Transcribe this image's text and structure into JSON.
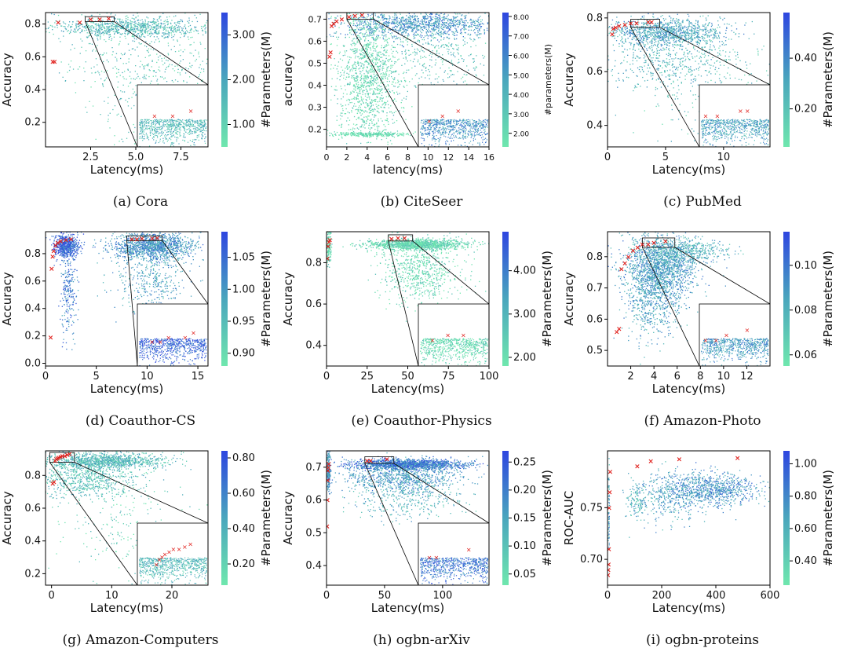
{
  "colors": {
    "cmap_low": "#6fe7ae",
    "cmap_mid": "#4aa6bd",
    "cmap_high": "#2e46e0",
    "pareto": "#e0201c",
    "axis": "#000000"
  },
  "chart_data": [
    {
      "type": "scatter",
      "caption": "(a) Cora",
      "xlabel": "Latency(ms)",
      "ylabel": "Accuracy",
      "colorbar_label": "#Parameters(M)",
      "xlim": [
        0,
        9
      ],
      "ylim": [
        0.05,
        0.87
      ],
      "xticks": [
        2.5,
        5.0,
        7.5
      ],
      "xtick_labels": [
        "2.5",
        "5.0",
        "7.5"
      ],
      "yticks": [
        0.2,
        0.4,
        0.6,
        0.8
      ],
      "ytick_labels": [
        "0.2",
        "0.4",
        "0.6",
        "0.8"
      ],
      "cbar_range": [
        0.5,
        3.5
      ],
      "cbar_ticks": [
        1.0,
        2.0,
        3.0
      ],
      "cbar_tick_labels": [
        "1.00",
        "2.00",
        "3.00"
      ],
      "pareto": {
        "x": [
          0.4,
          0.5,
          0.7,
          1.9,
          2.5,
          3.0,
          3.5
        ],
        "y": [
          0.57,
          0.57,
          0.81,
          0.81,
          0.83,
          0.83,
          0.835
        ]
      },
      "zoom_box": {
        "x": [
          2.2,
          3.8
        ],
        "y": [
          0.815,
          0.845
        ]
      }
    },
    {
      "type": "scatter",
      "caption": "(b) CiteSeer",
      "xlabel": "latency(ms)",
      "ylabel": "accuracy",
      "colorbar_label": "#parameters(M)",
      "xlim": [
        0,
        16
      ],
      "ylim": [
        0.12,
        0.73
      ],
      "xticks": [
        0,
        2,
        4,
        6,
        8,
        10,
        12,
        14,
        16
      ],
      "xtick_labels": [
        "0",
        "2",
        "4",
        "6",
        "8",
        "10",
        "12",
        "14",
        "16"
      ],
      "yticks": [
        0.2,
        0.3,
        0.4,
        0.5,
        0.6,
        0.7
      ],
      "ytick_labels": [
        "0.2",
        "0.3",
        "0.4",
        "0.5",
        "0.6",
        "0.7"
      ],
      "cbar_range": [
        1.3,
        8.2
      ],
      "cbar_ticks": [
        2,
        3,
        4,
        5,
        6,
        7,
        8
      ],
      "cbar_tick_labels": [
        "2.00",
        "3.00",
        "4.00",
        "5.00",
        "6.00",
        "7.00",
        "8.00"
      ],
      "pareto": {
        "x": [
          0.3,
          0.4,
          0.5,
          0.7,
          1.0,
          1.5,
          2.2,
          2.8,
          3.5
        ],
        "y": [
          0.53,
          0.55,
          0.67,
          0.68,
          0.69,
          0.7,
          0.71,
          0.715,
          0.72
        ]
      },
      "zoom_box": {
        "x": [
          2.0,
          4.6
        ],
        "y": [
          0.7,
          0.73
        ]
      }
    },
    {
      "type": "scatter",
      "caption": "(c) PubMed",
      "xlabel": "Latency(ms)",
      "ylabel": "Accuracy",
      "colorbar_label": "#Parameters(M)",
      "xlim": [
        0,
        14
      ],
      "ylim": [
        0.32,
        0.82
      ],
      "xticks": [
        0,
        5,
        10
      ],
      "xtick_labels": [
        "0",
        "5",
        "10"
      ],
      "yticks": [
        0.4,
        0.6,
        0.8
      ],
      "ytick_labels": [
        "0.4",
        "0.6",
        "0.8"
      ],
      "cbar_range": [
        0.05,
        0.58
      ],
      "cbar_ticks": [
        0.2,
        0.4
      ],
      "cbar_tick_labels": [
        "0.20",
        "0.40"
      ],
      "pareto": {
        "x": [
          0.4,
          0.5,
          0.7,
          1.0,
          1.5,
          2.0,
          2.5,
          3.5,
          3.8
        ],
        "y": [
          0.74,
          0.76,
          0.765,
          0.77,
          0.775,
          0.78,
          0.78,
          0.785,
          0.785
        ]
      },
      "zoom_box": {
        "x": [
          2.0,
          4.5
        ],
        "y": [
          0.765,
          0.795
        ]
      }
    },
    {
      "type": "scatter",
      "caption": "(d) Coauthor-CS",
      "xlabel": "Latency(ms)",
      "ylabel": "Accuracy",
      "colorbar_label": "#Parameters(M)",
      "xlim": [
        0,
        16
      ],
      "ylim": [
        -0.02,
        0.96
      ],
      "xticks": [
        0,
        5,
        10,
        15
      ],
      "xtick_labels": [
        "0",
        "5",
        "10",
        "15"
      ],
      "yticks": [
        0.0,
        0.2,
        0.4,
        0.6,
        0.8
      ],
      "ytick_labels": [
        "0.0",
        "0.2",
        "0.4",
        "0.6",
        "0.8"
      ],
      "cbar_range": [
        0.88,
        1.09
      ],
      "cbar_ticks": [
        0.9,
        0.95,
        1.0,
        1.05
      ],
      "cbar_tick_labels": [
        "0.90",
        "0.95",
        "1.00",
        "1.05"
      ],
      "pareto": {
        "x": [
          0.5,
          0.6,
          0.7,
          0.8,
          1.0,
          1.2,
          1.5,
          2.0,
          2.5,
          8.5,
          9.0,
          9.5,
          10.5,
          11.0
        ],
        "y": [
          0.19,
          0.69,
          0.78,
          0.82,
          0.86,
          0.88,
          0.89,
          0.9,
          0.905,
          0.905,
          0.905,
          0.91,
          0.91,
          0.915
        ]
      },
      "zoom_box": {
        "x": [
          8.0,
          11.5
        ],
        "y": [
          0.895,
          0.93
        ]
      }
    },
    {
      "type": "scatter",
      "caption": "(e) Coauthor-Physics",
      "xlabel": "Latency(ms)",
      "ylabel": "Accuracy",
      "colorbar_label": "#Parameters(M)",
      "xlim": [
        0,
        100
      ],
      "ylim": [
        0.3,
        0.95
      ],
      "xticks": [
        0,
        25,
        50,
        75,
        100
      ],
      "xtick_labels": [
        "0",
        "25",
        "50",
        "75",
        "100"
      ],
      "yticks": [
        0.4,
        0.6,
        0.8
      ],
      "ytick_labels": [
        "0.4",
        "0.6",
        "0.8"
      ],
      "cbar_range": [
        1.8,
        4.9
      ],
      "cbar_ticks": [
        2,
        3,
        4
      ],
      "cbar_tick_labels": [
        "2.00",
        "3.00",
        "4.00"
      ],
      "pareto": {
        "x": [
          0.5,
          1.0,
          1.5,
          2.0,
          40,
          44,
          48
        ],
        "y": [
          0.82,
          0.88,
          0.9,
          0.91,
          0.915,
          0.92,
          0.92
        ]
      },
      "zoom_box": {
        "x": [
          38,
          53
        ],
        "y": [
          0.905,
          0.935
        ]
      }
    },
    {
      "type": "scatter",
      "caption": "(f) Amazon-Photo",
      "xlabel": "Latency(ms)",
      "ylabel": "Accuracy",
      "colorbar_label": "#Parameters(M)",
      "xlim": [
        0,
        14
      ],
      "ylim": [
        0.45,
        0.88
      ],
      "xticks": [
        2,
        4,
        6,
        8,
        10,
        12
      ],
      "xtick_labels": [
        "2",
        "4",
        "6",
        "8",
        "10",
        "12"
      ],
      "yticks": [
        0.5,
        0.6,
        0.7,
        0.8
      ],
      "ytick_labels": [
        "0.5",
        "0.6",
        "0.7",
        "0.8"
      ],
      "cbar_range": [
        0.055,
        0.115
      ],
      "cbar_ticks": [
        0.06,
        0.08,
        0.1
      ],
      "cbar_tick_labels": [
        "0.06",
        "0.08",
        "0.10"
      ],
      "pareto": {
        "x": [
          0.8,
          1.0,
          1.2,
          1.5,
          1.8,
          2.2,
          2.6,
          3.0,
          3.5,
          4.0,
          5.0
        ],
        "y": [
          0.56,
          0.57,
          0.76,
          0.78,
          0.8,
          0.82,
          0.83,
          0.84,
          0.84,
          0.845,
          0.85
        ]
      },
      "zoom_box": {
        "x": [
          3.0,
          5.8
        ],
        "y": [
          0.83,
          0.86
        ]
      }
    },
    {
      "type": "scatter",
      "caption": "(g) Amazon-Computers",
      "xlabel": "Latency(ms)",
      "ylabel": "Accuracy",
      "colorbar_label": "#Parameters(M)",
      "xlim": [
        -1,
        26
      ],
      "ylim": [
        0.13,
        0.95
      ],
      "xticks": [
        0,
        10,
        20
      ],
      "xtick_labels": [
        "0",
        "10",
        "20"
      ],
      "yticks": [
        0.2,
        0.4,
        0.6,
        0.8
      ],
      "ytick_labels": [
        "0.2",
        "0.4",
        "0.6",
        "0.8"
      ],
      "cbar_range": [
        0.08,
        0.84
      ],
      "cbar_ticks": [
        0.2,
        0.4,
        0.6,
        0.8
      ],
      "cbar_tick_labels": [
        "0.20",
        "0.40",
        "0.60",
        "0.80"
      ],
      "pareto": {
        "x": [
          0.2,
          0.4,
          0.6,
          0.8,
          1.0,
          1.2,
          1.5,
          1.8,
          2.2,
          2.6,
          3.0
        ],
        "y": [
          0.75,
          0.76,
          0.89,
          0.9,
          0.905,
          0.91,
          0.915,
          0.92,
          0.92,
          0.925,
          0.93
        ]
      },
      "zoom_box": {
        "x": [
          -0.3,
          3.8
        ],
        "y": [
          0.88,
          0.94
        ]
      }
    },
    {
      "type": "scatter",
      "caption": "(h) ogbn-arXiv",
      "xlabel": "Latency(ms)",
      "ylabel": "Accuracy",
      "colorbar_label": "#Parameters(M)",
      "xlim": [
        0,
        140
      ],
      "ylim": [
        0.34,
        0.75
      ],
      "xticks": [
        0,
        50,
        100
      ],
      "xtick_labels": [
        "0",
        "50",
        "100"
      ],
      "yticks": [
        0.4,
        0.5,
        0.6,
        0.7
      ],
      "ytick_labels": [
        "0.4",
        "0.5",
        "0.6",
        "0.7"
      ],
      "cbar_range": [
        0.03,
        0.27
      ],
      "cbar_ticks": [
        0.05,
        0.1,
        0.15,
        0.2,
        0.25
      ],
      "cbar_tick_labels": [
        "0.05",
        "0.10",
        "0.15",
        "0.20",
        "0.25"
      ],
      "pareto": {
        "x": [
          0.5,
          0.8,
          1.0,
          1.2,
          1.5,
          2.0,
          35,
          38,
          52
        ],
        "y": [
          0.52,
          0.6,
          0.66,
          0.69,
          0.7,
          0.71,
          0.72,
          0.72,
          0.725
        ]
      },
      "zoom_box": {
        "x": [
          33,
          58
        ],
        "y": [
          0.712,
          0.732
        ]
      }
    },
    {
      "type": "scatter",
      "caption": "(i) ogbn-proteins",
      "xlabel": "Latency(ms)",
      "ylabel": "ROC-AUC",
      "colorbar_label": "#Parameters(M)",
      "xlim": [
        0,
        600
      ],
      "ylim": [
        0.675,
        0.805
      ],
      "xticks": [
        0,
        200,
        400,
        600
      ],
      "xtick_labels": [
        "0",
        "200",
        "400",
        "600"
      ],
      "yticks": [
        0.7,
        0.75
      ],
      "ytick_labels": [
        "0.70",
        "0.75"
      ],
      "cbar_range": [
        0.25,
        1.08
      ],
      "cbar_ticks": [
        0.4,
        0.6,
        0.8,
        1.0
      ],
      "cbar_tick_labels": [
        "0.40",
        "0.60",
        "0.80",
        "1.00"
      ],
      "pareto": {
        "x": [
          2,
          3,
          4,
          5,
          6,
          8,
          10,
          110,
          160,
          265,
          480
        ],
        "y": [
          0.685,
          0.69,
          0.695,
          0.71,
          0.75,
          0.765,
          0.785,
          0.79,
          0.795,
          0.797,
          0.798
        ]
      },
      "zoom_box": null
    }
  ]
}
